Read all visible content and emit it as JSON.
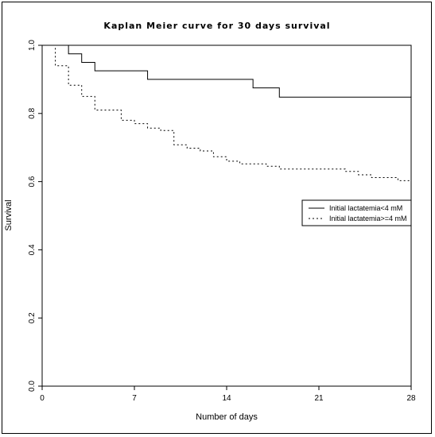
{
  "chart_data": {
    "type": "line",
    "title": "Kaplan Meier curve for 30 days survival",
    "xlabel": "Number of days",
    "ylabel": "Survival",
    "xlim": [
      0,
      28
    ],
    "ylim": [
      0,
      1
    ],
    "x_ticks": [
      0,
      7,
      14,
      21,
      28
    ],
    "x_tick_labels": [
      "0",
      "7",
      "14",
      "21",
      "28"
    ],
    "y_ticks": [
      0,
      0.2,
      0.4,
      0.6,
      0.8,
      1.0
    ],
    "y_tick_labels": [
      "0.0",
      "0.2",
      "0.4",
      "0.6",
      "0.8",
      "1.0"
    ],
    "grid": false,
    "legend_position": "right",
    "series": [
      {
        "name": "Initial lactatemia<4 mM",
        "line_style": "solid",
        "color": "#000000",
        "steps": [
          [
            0,
            1.0
          ],
          [
            2,
            0.975
          ],
          [
            3,
            0.95
          ],
          [
            4,
            0.925
          ],
          [
            8,
            0.9
          ],
          [
            16,
            0.875
          ],
          [
            18,
            0.848
          ],
          [
            28,
            0.848
          ]
        ]
      },
      {
        "name": "Initial lactatemia>=4 mM",
        "line_style": "dotted",
        "color": "#000000",
        "steps": [
          [
            0,
            1.0
          ],
          [
            1,
            0.94
          ],
          [
            2,
            0.883
          ],
          [
            3,
            0.85
          ],
          [
            4,
            0.81
          ],
          [
            6,
            0.78
          ],
          [
            7,
            0.77
          ],
          [
            8,
            0.757
          ],
          [
            9,
            0.75
          ],
          [
            10,
            0.708
          ],
          [
            11,
            0.698
          ],
          [
            12,
            0.69
          ],
          [
            13,
            0.673
          ],
          [
            14,
            0.66
          ],
          [
            15,
            0.652
          ],
          [
            17,
            0.645
          ],
          [
            18,
            0.637
          ],
          [
            23,
            0.63
          ],
          [
            24,
            0.62
          ],
          [
            25,
            0.612
          ],
          [
            27,
            0.603
          ],
          [
            28,
            0.603
          ]
        ]
      }
    ]
  }
}
